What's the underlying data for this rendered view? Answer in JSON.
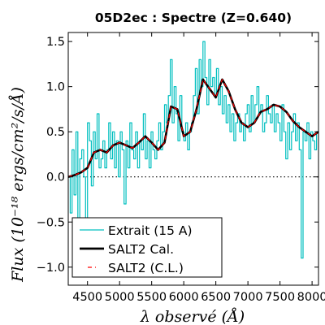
{
  "chart_data": {
    "type": "line",
    "title": "05D2ec : Spectre (Z=0.640)",
    "xlabel": "λ observé (Å)",
    "ylabel": "Flux (10⁻¹⁸ ergs/cm²/s/Å)",
    "xlim": [
      4200,
      8100
    ],
    "ylim": [
      -1.2,
      1.6
    ],
    "x_ticks": [
      4500,
      5000,
      5500,
      6000,
      6500,
      7000,
      7500,
      8000
    ],
    "x_tick_labels": [
      "4500",
      "5000",
      "5500",
      "6000",
      "6500",
      "7000",
      "7500",
      "8000"
    ],
    "y_ticks": [
      -1.0,
      -0.5,
      0.0,
      0.5,
      1.0,
      1.5
    ],
    "y_tick_labels": [
      "−1.0",
      "−0.5",
      "0.0",
      "0.5",
      "1.0",
      "1.5"
    ],
    "zero_line": {
      "y": 0,
      "style": "dotted"
    },
    "grid": false,
    "legend_position": "lower-left",
    "series": [
      {
        "name": "Extrait (15 A)",
        "style": "step",
        "color": "#00bfbf",
        "x": [
          4200,
          4230,
          4260,
          4290,
          4320,
          4350,
          4380,
          4410,
          4440,
          4470,
          4500,
          4530,
          4560,
          4590,
          4620,
          4650,
          4680,
          4710,
          4740,
          4770,
          4800,
          4830,
          4860,
          4890,
          4920,
          4950,
          4980,
          5010,
          5040,
          5070,
          5100,
          5130,
          5160,
          5190,
          5220,
          5250,
          5280,
          5310,
          5340,
          5370,
          5400,
          5430,
          5460,
          5490,
          5520,
          5550,
          5580,
          5610,
          5640,
          5670,
          5700,
          5730,
          5760,
          5790,
          5820,
          5850,
          5880,
          5910,
          5940,
          5970,
          6000,
          6030,
          6060,
          6090,
          6120,
          6150,
          6180,
          6210,
          6240,
          6270,
          6300,
          6330,
          6360,
          6390,
          6420,
          6450,
          6480,
          6510,
          6540,
          6570,
          6600,
          6630,
          6660,
          6690,
          6720,
          6750,
          6780,
          6810,
          6840,
          6870,
          6900,
          6930,
          6960,
          6990,
          7020,
          7050,
          7080,
          7110,
          7140,
          7170,
          7200,
          7230,
          7260,
          7290,
          7320,
          7350,
          7380,
          7410,
          7440,
          7470,
          7500,
          7530,
          7560,
          7590,
          7620,
          7650,
          7680,
          7710,
          7740,
          7770,
          7800,
          7830,
          7860,
          7890,
          7920,
          7950,
          7980,
          8010,
          8040,
          8070,
          8100
        ],
        "y": [
          0.0,
          -0.4,
          0.3,
          -0.2,
          0.5,
          -0.6,
          0.2,
          0.3,
          0.0,
          -0.5,
          0.6,
          0.4,
          -0.1,
          0.5,
          0.2,
          0.7,
          0.1,
          0.2,
          0.4,
          0.1,
          0.3,
          0.6,
          0.2,
          0.5,
          0.1,
          0.4,
          0.0,
          0.5,
          0.3,
          -0.3,
          0.4,
          0.1,
          0.6,
          0.3,
          0.2,
          0.5,
          0.1,
          0.4,
          0.3,
          0.7,
          0.2,
          0.4,
          0.1,
          0.5,
          0.3,
          0.2,
          0.4,
          0.6,
          0.3,
          0.5,
          0.8,
          0.6,
          0.9,
          1.3,
          0.6,
          1.0,
          0.7,
          0.4,
          0.9,
          0.5,
          0.4,
          0.6,
          0.3,
          0.5,
          0.6,
          0.9,
          1.2,
          0.7,
          1.3,
          1.0,
          1.5,
          1.1,
          0.8,
          1.3,
          1.0,
          1.1,
          0.9,
          1.2,
          0.8,
          1.0,
          0.7,
          0.9,
          0.6,
          0.8,
          0.5,
          0.7,
          0.4,
          0.6,
          0.7,
          0.5,
          0.6,
          0.4,
          0.7,
          0.8,
          0.5,
          0.9,
          0.6,
          0.8,
          1.0,
          0.7,
          0.8,
          0.5,
          0.6,
          0.9,
          0.7,
          0.6,
          0.8,
          0.5,
          0.7,
          0.6,
          0.4,
          0.8,
          0.5,
          0.2,
          0.6,
          0.3,
          0.5,
          0.7,
          0.4,
          0.6,
          0.3,
          -0.9,
          0.5,
          0.4,
          0.6,
          0.2,
          0.5,
          0.4,
          0.3,
          0.5,
          0.4
        ]
      },
      {
        "name": "SALT2 Cal.",
        "style": "line",
        "color": "#000000",
        "x": [
          4200,
          4300,
          4400,
          4500,
          4600,
          4700,
          4800,
          4900,
          5000,
          5100,
          5200,
          5300,
          5400,
          5500,
          5600,
          5700,
          5800,
          5900,
          6000,
          6100,
          6200,
          6300,
          6400,
          6500,
          6600,
          6700,
          6800,
          6900,
          7000,
          7100,
          7200,
          7300,
          7400,
          7500,
          7600,
          7700,
          7800,
          7900,
          8000,
          8100
        ],
        "y": [
          0.0,
          0.02,
          0.05,
          0.1,
          0.27,
          0.3,
          0.27,
          0.35,
          0.38,
          0.35,
          0.32,
          0.38,
          0.45,
          0.38,
          0.3,
          0.38,
          0.78,
          0.75,
          0.45,
          0.5,
          0.75,
          1.08,
          0.98,
          0.88,
          1.08,
          0.95,
          0.75,
          0.6,
          0.55,
          0.6,
          0.72,
          0.75,
          0.8,
          0.78,
          0.72,
          0.62,
          0.55,
          0.5,
          0.45,
          0.5
        ]
      },
      {
        "name": "SALT2 (C.L.)",
        "style": "dashed",
        "color": "#ff0000",
        "x": [
          4200,
          4300,
          4400,
          4500,
          4600,
          4700,
          4800,
          4900,
          5000,
          5100,
          5200,
          5300,
          5400,
          5500,
          5600,
          5700,
          5800,
          5900,
          6000,
          6100,
          6200,
          6300,
          6400,
          6500,
          6600,
          6700,
          6800,
          6900,
          7000,
          7100,
          7200,
          7300,
          7400,
          7500,
          7600,
          7700,
          7800,
          7900,
          8000,
          8100
        ],
        "y": [
          0.0,
          0.02,
          0.05,
          0.1,
          0.27,
          0.3,
          0.27,
          0.35,
          0.38,
          0.35,
          0.32,
          0.38,
          0.45,
          0.38,
          0.3,
          0.38,
          0.78,
          0.75,
          0.45,
          0.5,
          0.75,
          1.08,
          0.98,
          0.88,
          1.08,
          0.95,
          0.75,
          0.6,
          0.55,
          0.6,
          0.72,
          0.75,
          0.8,
          0.78,
          0.72,
          0.62,
          0.55,
          0.5,
          0.45,
          0.5
        ]
      }
    ]
  }
}
